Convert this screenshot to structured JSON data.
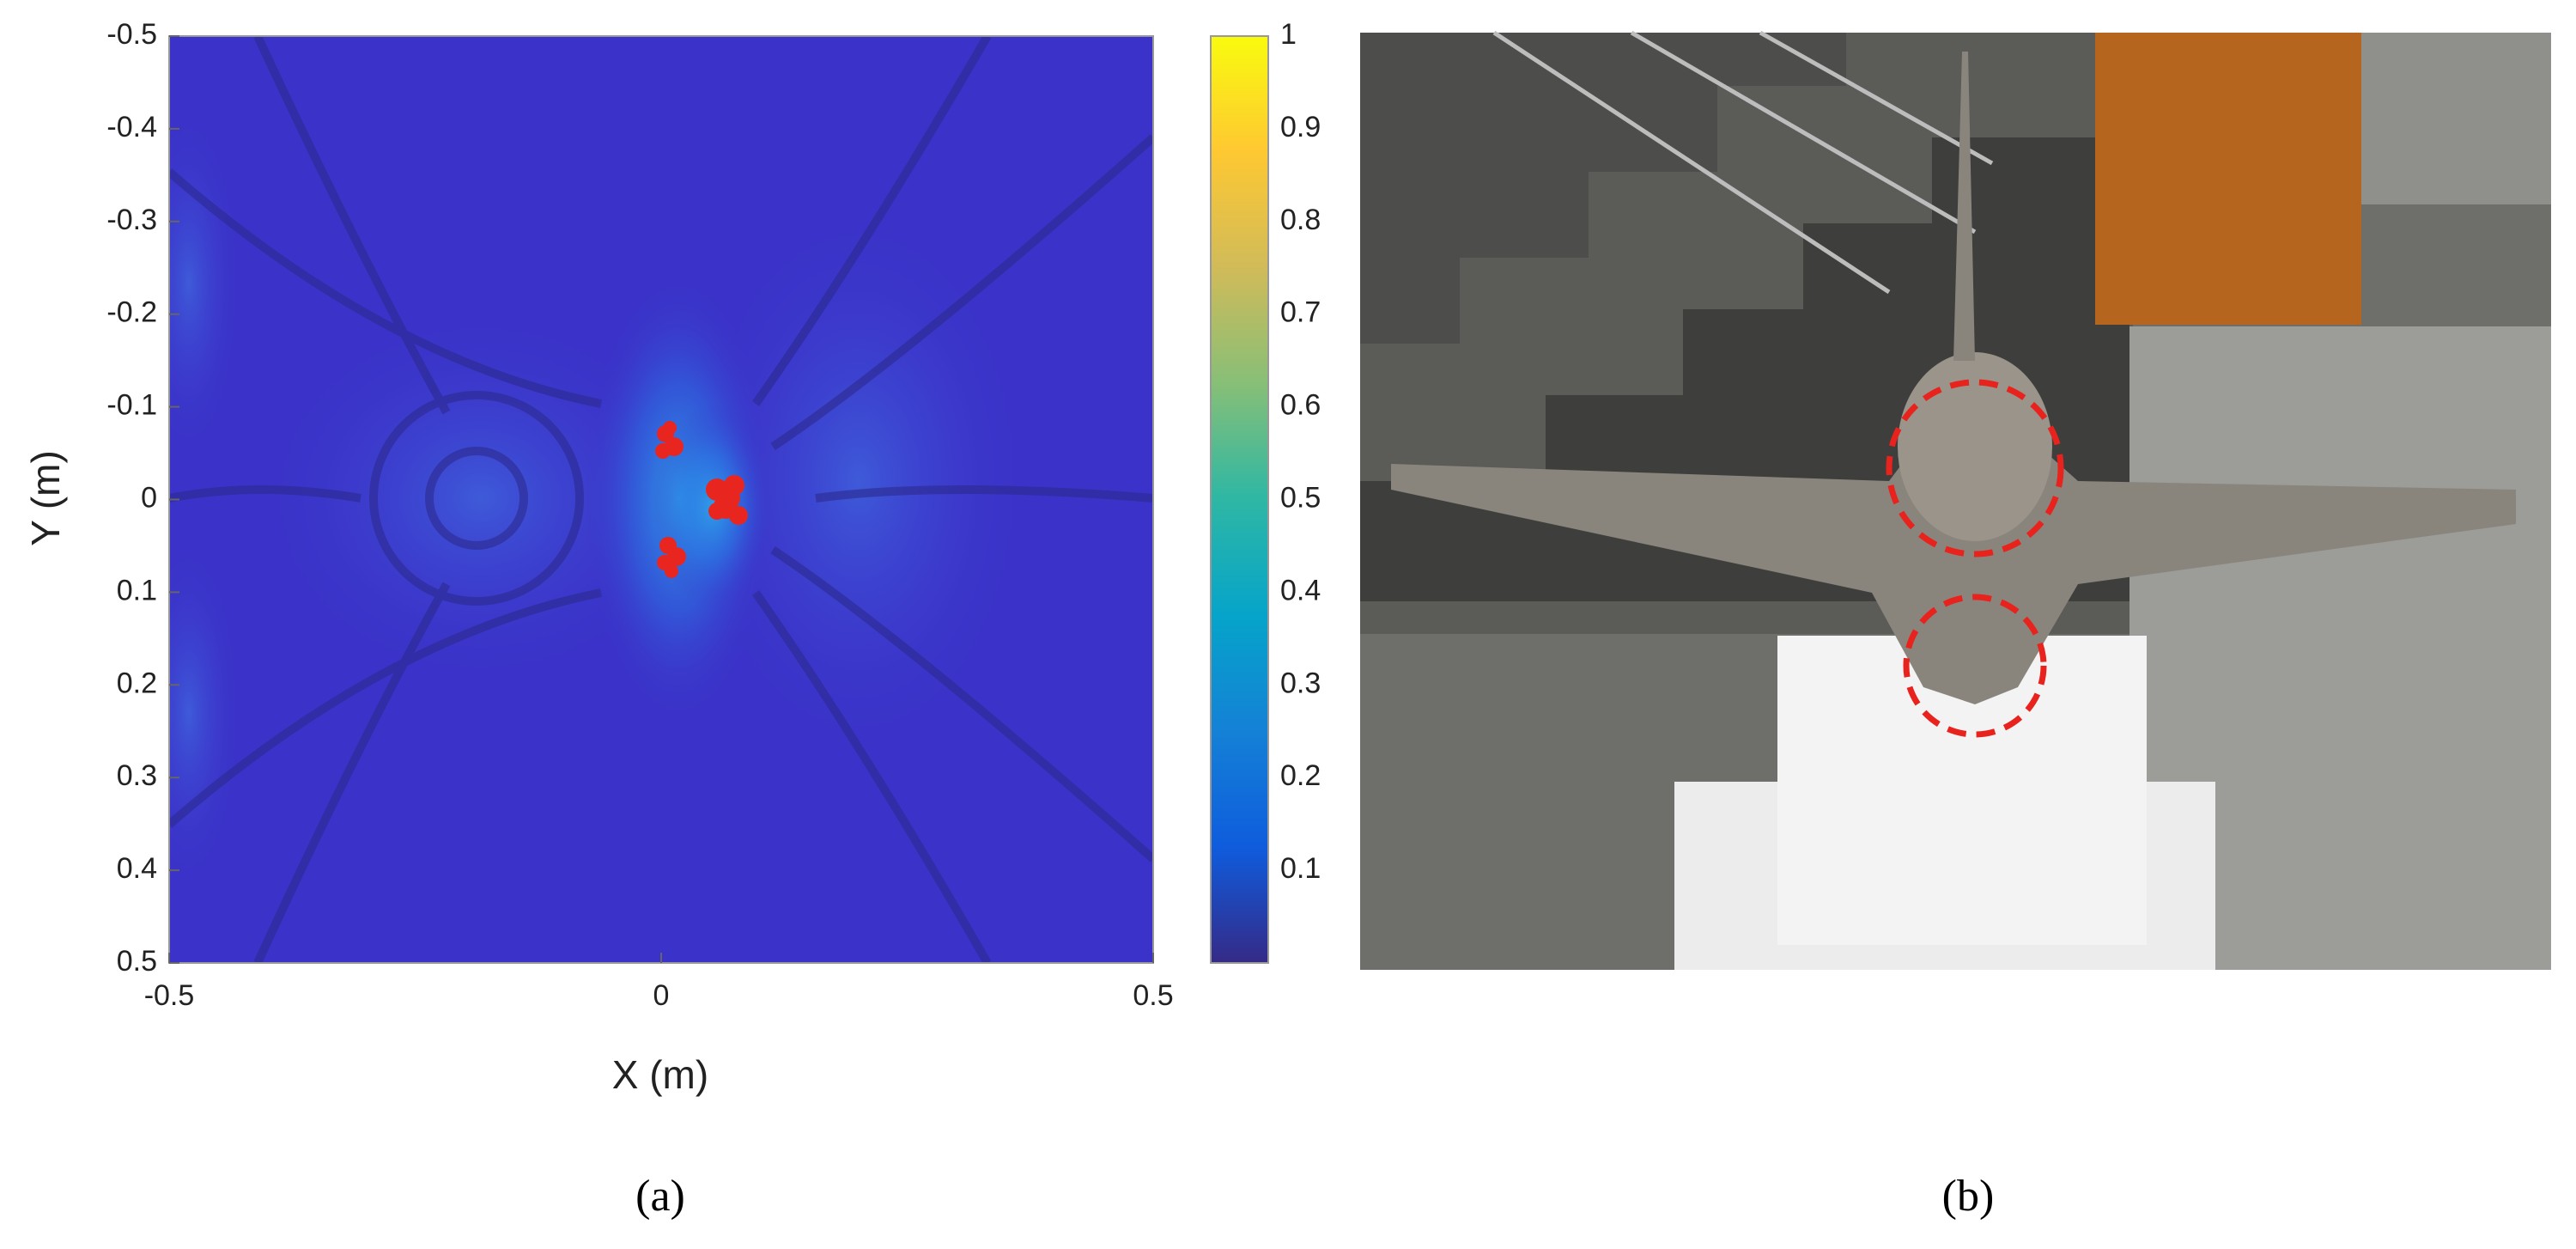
{
  "chart_data": {
    "type": "heatmap",
    "xlabel": "X (m)",
    "ylabel": "Y (m)",
    "xlim": [
      -0.5,
      0.5
    ],
    "xticks": [
      -0.5,
      0,
      0.5
    ],
    "ylim": [
      -0.5,
      0.5
    ],
    "y_reversed": true,
    "yticks": [
      -0.5,
      -0.4,
      -0.3,
      -0.2,
      -0.1,
      0,
      0.1,
      0.2,
      0.3,
      0.4,
      0.5
    ],
    "clim": [
      0,
      1
    ],
    "cticks": [
      0.1,
      0.2,
      0.3,
      0.4,
      0.5,
      0.6,
      0.7,
      0.8,
      0.9,
      1
    ],
    "colormap": [
      "#352a87",
      "#0f5cdd",
      "#1481d6",
      "#06a4ca",
      "#2eb7a4",
      "#87bf77",
      "#d1bb59",
      "#fec832",
      "#f9fb0e"
    ]
  },
  "captions": [
    "(a)",
    "(b)"
  ]
}
